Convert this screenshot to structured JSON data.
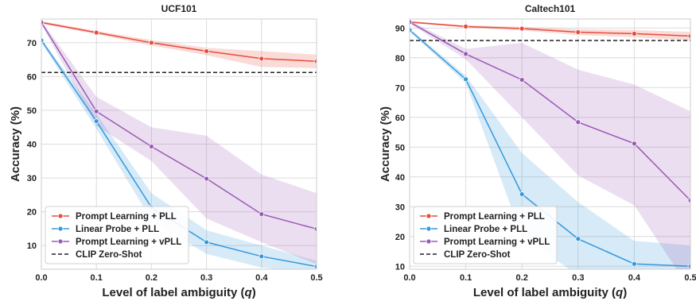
{
  "chart_data": [
    {
      "type": "line",
      "title": "UCF101",
      "xlabel": "Level of label ambiguity (",
      "xlabel_var": "q",
      "xlabel_close": ")",
      "ylabel": "Accuracy (%)",
      "x": [
        0.0,
        0.1,
        0.2,
        0.3,
        0.4,
        0.5
      ],
      "xlim": [
        0.0,
        0.5
      ],
      "ylim": [
        3,
        77
      ],
      "xticks": [
        "0.0",
        "0.1",
        "0.2",
        "0.3",
        "0.4",
        "0.5"
      ],
      "yticks": [
        10,
        20,
        30,
        40,
        50,
        60,
        70
      ],
      "grid": true,
      "legend_position": "bottom-left",
      "series": [
        {
          "name": "Prompt Learning + PLL",
          "color": "#e74c3c",
          "values": [
            76.0,
            73.0,
            70.0,
            67.5,
            65.3,
            64.5
          ],
          "lower": [
            75.6,
            72.5,
            69.2,
            66.3,
            62.8,
            62.5
          ],
          "upper": [
            76.4,
            73.5,
            70.8,
            68.5,
            67.5,
            66.5
          ]
        },
        {
          "name": "Linear Probe + PLL",
          "color": "#3498db",
          "values": [
            70.7,
            46.8,
            21.3,
            11.0,
            6.8,
            3.8
          ],
          "lower": [
            70.0,
            44.5,
            17.5,
            7.5,
            3.5,
            2.0
          ],
          "upper": [
            71.2,
            49.0,
            25.5,
            14.5,
            10.0,
            5.5
          ]
        },
        {
          "name": "Prompt Learning + vPLL",
          "color": "#9b59b6",
          "values": [
            76.0,
            49.7,
            39.3,
            29.8,
            19.3,
            14.9
          ],
          "lower": [
            75.5,
            45.5,
            35.0,
            18.0,
            11.0,
            4.5
          ],
          "upper": [
            76.5,
            54.0,
            45.0,
            42.5,
            31.0,
            25.5
          ]
        }
      ],
      "reference_line": {
        "name": "CLIP Zero-Shot",
        "value": 61.2,
        "color": "#222222"
      }
    },
    {
      "type": "line",
      "title": "Caltech101",
      "xlabel": "Level of label ambiguity (",
      "xlabel_var": "q",
      "xlabel_close": ")",
      "ylabel": "Accuracy (%)",
      "x": [
        0.0,
        0.1,
        0.2,
        0.3,
        0.4,
        0.5
      ],
      "xlim": [
        0.0,
        0.5
      ],
      "ylim": [
        9,
        93
      ],
      "xticks": [
        "0.0",
        "0.1",
        "0.2",
        "0.3",
        "0.4",
        "0.5"
      ],
      "yticks": [
        10,
        20,
        30,
        40,
        50,
        60,
        70,
        80,
        90
      ],
      "grid": true,
      "legend_position": "bottom-left",
      "series": [
        {
          "name": "Prompt Learning + PLL",
          "color": "#e74c3c",
          "values": [
            92.0,
            90.5,
            89.8,
            88.6,
            88.1,
            87.3
          ],
          "lower": [
            91.7,
            90.1,
            89.2,
            87.6,
            86.9,
            85.9
          ],
          "upper": [
            92.3,
            90.9,
            90.4,
            89.6,
            89.3,
            88.7
          ]
        },
        {
          "name": "Linear Probe + PLL",
          "color": "#3498db",
          "values": [
            89.3,
            72.8,
            34.2,
            19.2,
            10.8,
            10.0
          ],
          "lower": [
            88.8,
            71.5,
            20.0,
            7.0,
            2.0,
            2.0
          ],
          "upper": [
            89.8,
            74.0,
            48.0,
            31.5,
            18.5,
            17.0
          ]
        },
        {
          "name": "Prompt Learning + vPLL",
          "color": "#9b59b6",
          "values": [
            92.0,
            81.3,
            72.6,
            58.4,
            51.2,
            32.1
          ],
          "lower": [
            91.5,
            79.5,
            60.0,
            40.5,
            30.5,
            2.0
          ],
          "upper": [
            92.5,
            83.0,
            85.0,
            76.0,
            71.0,
            62.0
          ]
        }
      ],
      "reference_line": {
        "name": "CLIP Zero-Shot",
        "value": 85.8,
        "color": "#222222"
      }
    }
  ]
}
